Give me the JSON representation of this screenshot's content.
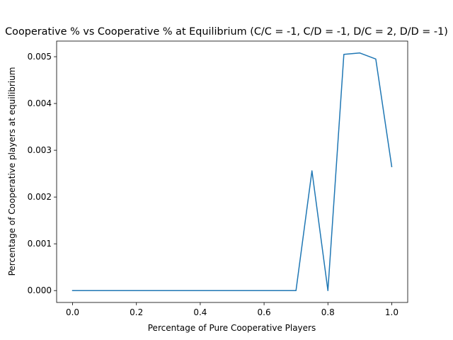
{
  "chart_data": {
    "type": "line",
    "title": "Cooperative % vs Cooperative % at Equilibrium (C/C = -1, C/D = -1, D/C = 2, D/D = -1)",
    "xlabel": "Percentage of Pure Cooperative Players",
    "ylabel": "Percentage of Cooperative players at equilibrium",
    "xlim": [
      -0.05,
      1.05
    ],
    "ylim": [
      -0.000254,
      0.005334
    ],
    "xticks": [
      0.0,
      0.2,
      0.4,
      0.6,
      0.8,
      1.0
    ],
    "xtick_labels": [
      "0.0",
      "0.2",
      "0.4",
      "0.6",
      "0.8",
      "1.0"
    ],
    "yticks": [
      0.0,
      0.001,
      0.002,
      0.003,
      0.004,
      0.005
    ],
    "ytick_labels": [
      "0.000",
      "0.001",
      "0.002",
      "0.003",
      "0.004",
      "0.005"
    ],
    "grid": false,
    "series": [
      {
        "color": "#1f77b4",
        "x": [
          0.0,
          0.05,
          0.1,
          0.15,
          0.2,
          0.25,
          0.3,
          0.35,
          0.4,
          0.45,
          0.5,
          0.55,
          0.6,
          0.65,
          0.7,
          0.75,
          0.8,
          0.85,
          0.9,
          0.95,
          1.0
        ],
        "y": [
          0,
          0,
          0,
          0,
          0,
          0,
          0,
          0,
          0,
          0,
          0,
          0,
          0,
          0,
          0,
          0.00256,
          0,
          0.00505,
          0.00508,
          0.00495,
          0.00265
        ]
      }
    ]
  }
}
